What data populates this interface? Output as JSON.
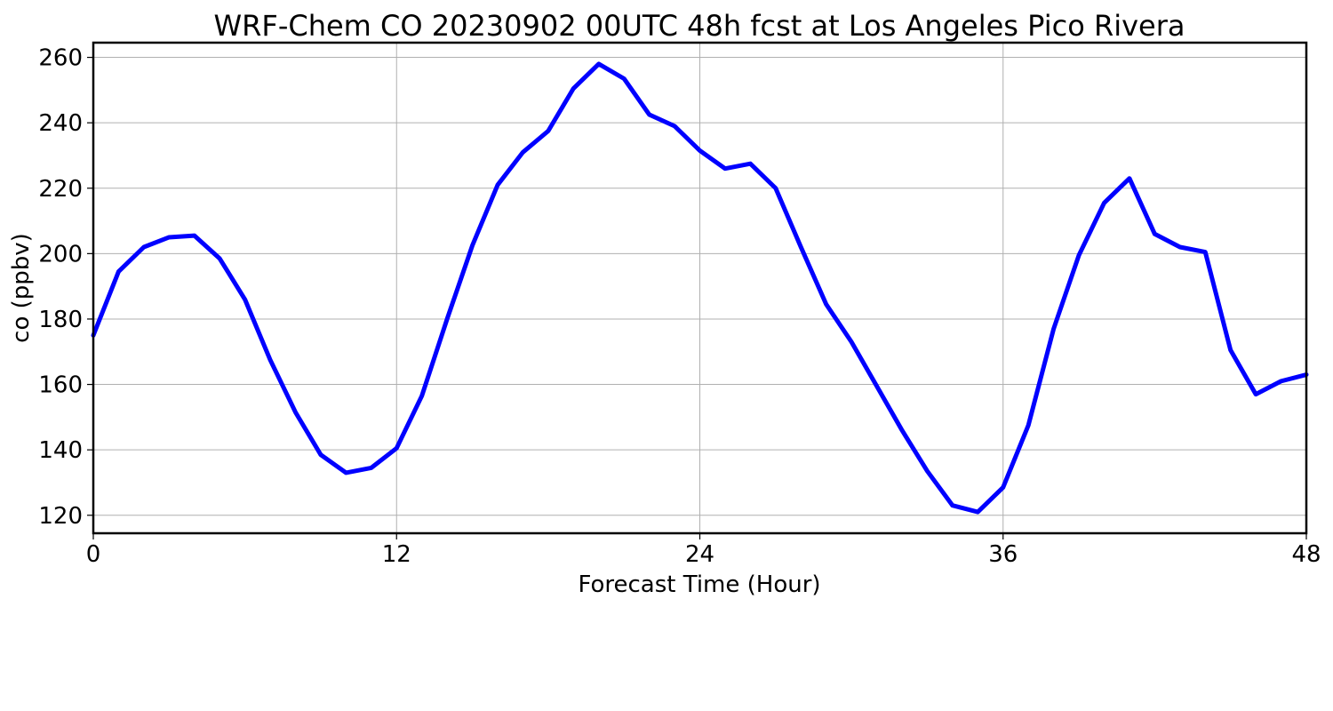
{
  "chart_data": {
    "type": "line",
    "title": "WRF-Chem CO  20230902 00UTC 48h fcst at Los Angeles Pico Rivera",
    "xlabel": "Forecast Time (Hour)",
    "ylabel": "co  (ppbv)",
    "xlim": [
      0,
      48
    ],
    "ylim": [
      114.5,
      264.5
    ],
    "xticks": [
      0,
      12,
      24,
      36,
      48
    ],
    "yticks": [
      120,
      140,
      160,
      180,
      200,
      220,
      240,
      260
    ],
    "grid": true,
    "legend": "none",
    "series": [
      {
        "color": "#0000ff",
        "x": [
          0,
          1,
          2,
          3,
          4,
          5,
          6,
          7,
          8,
          9,
          10,
          11,
          12,
          13,
          14,
          15,
          16,
          17,
          18,
          19,
          20,
          21,
          22,
          23,
          24,
          25,
          26,
          27,
          28,
          29,
          30,
          31,
          32,
          33,
          34,
          35,
          36,
          37,
          38,
          39,
          40,
          41,
          42,
          43,
          44,
          45,
          46,
          47,
          48
        ],
        "values": [
          175,
          194.5,
          202,
          205,
          205.5,
          198.5,
          186,
          167.5,
          151.5,
          138.5,
          133,
          134.5,
          140.5,
          156.5,
          180,
          202.5,
          221,
          231,
          237.5,
          250.5,
          258,
          253.5,
          242.5,
          239,
          231.5,
          226,
          227.5,
          220,
          202,
          184.5,
          173,
          159.5,
          146,
          133.5,
          123,
          121,
          128.5,
          147.5,
          177,
          199.5,
          215.5,
          223,
          206,
          202,
          200.5,
          170.5,
          157,
          161,
          163
        ]
      }
    ]
  }
}
